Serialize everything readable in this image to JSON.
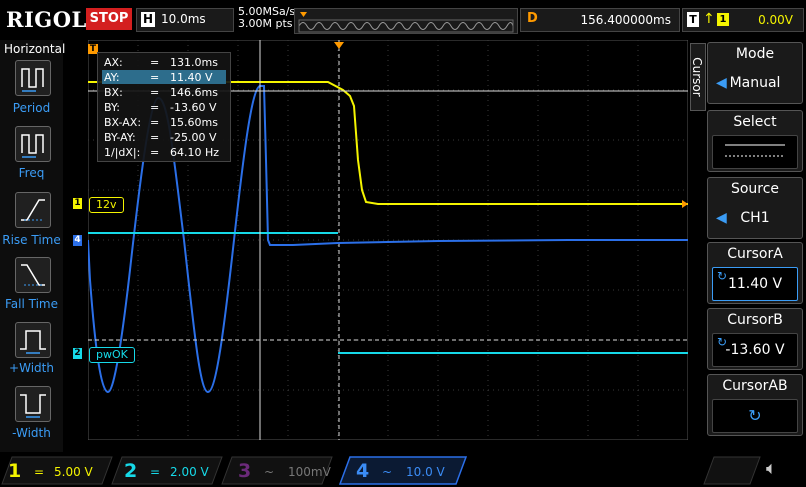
{
  "header": {
    "brand": "RIGOL",
    "run_state": "STOP",
    "timebase_label": "H",
    "timebase": "10.0ms",
    "sample_rate": "5.00MSa/s",
    "mem_depth": "3.00M pts",
    "delay_label": "D",
    "delay": "156.400000ms",
    "trigger_label": "T",
    "trigger_source": "1",
    "trigger_level": "0.00V"
  },
  "left_panel": {
    "title": "Horizontal",
    "items": [
      {
        "label": "Period"
      },
      {
        "label": "Freq"
      },
      {
        "label": "Rise Time"
      },
      {
        "label": "Fall Time"
      },
      {
        "label": "+Width"
      },
      {
        "label": "-Width"
      }
    ]
  },
  "readout": {
    "rows": [
      {
        "key": "AX:",
        "eq": "=",
        "val": "131.0ms"
      },
      {
        "key": "AY:",
        "eq": "=",
        "val": "11.40 V"
      },
      {
        "key": "BX:",
        "eq": "=",
        "val": "146.6ms"
      },
      {
        "key": "BY:",
        "eq": "=",
        "val": "-13.60 V"
      },
      {
        "key": "BX-AX:",
        "eq": "=",
        "val": "15.60ms"
      },
      {
        "key": "BY-AY:",
        "eq": "=",
        "val": "-25.00 V"
      },
      {
        "key": "1/|dX|:",
        "eq": "=",
        "val": "64.10 Hz"
      }
    ],
    "selected_index": 1
  },
  "channel_tags": {
    "ch1": "12v",
    "ch2": "pwOK",
    "ch1_num": "1",
    "ch2_num": "2",
    "ch4_num": "4",
    "trig_marker": "T"
  },
  "right_panel": {
    "side_tab": "Cursor",
    "mode_title": "Mode",
    "mode_value": "Manual",
    "select_title": "Select",
    "source_title": "Source",
    "source_value": "CH1",
    "cursor_a_title": "CursorA",
    "cursor_a_value": "11.40 V",
    "cursor_b_title": "CursorB",
    "cursor_b_value": "-13.60 V",
    "cursor_ab_title": "CursorAB"
  },
  "bottom": {
    "channels": [
      {
        "num": "1",
        "coupling": "=",
        "scale": "5.00 V",
        "color": "#f4f400"
      },
      {
        "num": "2",
        "coupling": "=",
        "scale": "2.00 V",
        "color": "#16d9e8"
      },
      {
        "num": "3",
        "coupling": "~",
        "scale": "100mV",
        "color": "#b035c6"
      },
      {
        "num": "4",
        "coupling": "~",
        "scale": "10.0 V",
        "color": "#2b6fe8"
      }
    ]
  },
  "colors": {
    "ch1": "#f4f400",
    "ch2": "#16d9e8",
    "ch4": "#2b6fe8",
    "accent": "#ff9a00",
    "stop": "#d41f1f"
  }
}
